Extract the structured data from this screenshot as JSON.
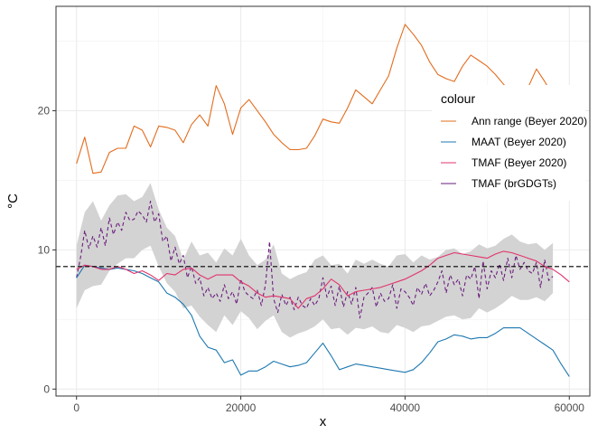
{
  "chart_data": {
    "type": "line",
    "title": "",
    "xlabel": "x",
    "ylabel": "°C",
    "xlim": [
      -2500,
      62500
    ],
    "ylim": [
      -0.5,
      27.5
    ],
    "x_ticks": [
      0,
      20000,
      40000,
      60000
    ],
    "x_tick_labels": [
      "0",
      "20000",
      "40000",
      "60000"
    ],
    "y_ticks": [
      0,
      10,
      20
    ],
    "y_tick_labels": [
      "0",
      "10",
      "20"
    ],
    "grid": true,
    "legend": {
      "title": "colour",
      "placement": "right",
      "entries": [
        {
          "label": "Ann range (Beyer 2020)",
          "color": "#E26C1E"
        },
        {
          "label": "MAAT (Beyer 2020)",
          "color": "#1D78B0"
        },
        {
          "label": "TMAF (Beyer 2020)",
          "color": "#E2336B"
        },
        {
          "label": "TMAF (brGDGTs)",
          "color": "#6B1E7E"
        }
      ]
    },
    "hline": {
      "y": 8.8,
      "style": "dashed",
      "color": "#000000"
    },
    "ribbon": {
      "color": "#D3D3D3",
      "x": [
        0,
        1000,
        2000,
        3000,
        4000,
        5000,
        6000,
        7000,
        8000,
        9000,
        10000,
        11000,
        12000,
        13000,
        14000,
        15000,
        16000,
        17000,
        18000,
        19000,
        20000,
        21000,
        22000,
        23000,
        24000,
        25000,
        26000,
        27000,
        28000,
        29000,
        30000,
        31000,
        32000,
        33000,
        34000,
        35000,
        36000,
        37000,
        38000,
        39000,
        40000,
        41000,
        42000,
        43000,
        44000,
        45000,
        46000,
        47000,
        48000,
        49000,
        50000,
        51000,
        52000,
        53000,
        54000,
        55000,
        56000,
        57000,
        58000
      ],
      "upper": [
        10.3,
        12.7,
        13.5,
        12.1,
        13.2,
        13.9,
        14.0,
        13.5,
        13.8,
        14.8,
        12.9,
        11.6,
        11.0,
        9.3,
        10.6,
        9.6,
        9.8,
        9.1,
        10.1,
        9.6,
        10.8,
        9.6,
        8.9,
        9.3,
        10.4,
        8.3,
        7.9,
        8.2,
        8.4,
        9.3,
        9.6,
        8.9,
        9.0,
        8.3,
        9.3,
        9.0,
        9.3,
        9.0,
        8.8,
        9.6,
        9.7,
        9.1,
        9.6,
        9.3,
        9.5,
        10.0,
        10.1,
        9.7,
        9.9,
        10.4,
        10.1,
        10.3,
        10.8,
        11.1,
        10.6,
        10.4,
        10.5,
        10.0,
        10.5
      ],
      "lower": [
        5.8,
        7.1,
        7.4,
        7.5,
        8.5,
        9.0,
        9.4,
        9.4,
        10.0,
        10.3,
        8.8,
        7.6,
        7.0,
        5.8,
        6.0,
        5.2,
        4.6,
        4.1,
        5.3,
        4.6,
        5.6,
        5.1,
        4.3,
        4.9,
        5.3,
        4.1,
        3.7,
        4.0,
        4.2,
        4.5,
        5.0,
        4.3,
        4.4,
        3.9,
        4.4,
        4.3,
        4.5,
        4.1,
        4.0,
        4.6,
        4.4,
        4.1,
        4.5,
        4.6,
        4.9,
        5.2,
        5.3,
        5.0,
        5.1,
        5.8,
        5.5,
        5.8,
        6.2,
        6.7,
        6.4,
        6.4,
        6.6,
        6.3,
        6.9
      ]
    },
    "series": [
      {
        "name": "Ann range (Beyer 2020)",
        "color": "#E26C1E",
        "style": "solid",
        "x": [
          0,
          1000,
          2000,
          3000,
          4000,
          5000,
          6000,
          7000,
          8000,
          9000,
          10000,
          11000,
          12000,
          13000,
          14000,
          15000,
          16000,
          17000,
          18000,
          19000,
          20000,
          21000,
          22000,
          23000,
          24000,
          25000,
          26000,
          27000,
          28000,
          29000,
          30000,
          31000,
          32000,
          33000,
          34000,
          35000,
          36000,
          37000,
          38000,
          39000,
          40000,
          41000,
          42000,
          43000,
          44000,
          45000,
          46000,
          47000,
          48000,
          49000,
          50000,
          51000,
          52000,
          53000,
          54000,
          55000,
          56000,
          57000,
          58000,
          59000,
          60000
        ],
        "values": [
          16.2,
          18.1,
          15.5,
          15.6,
          17.0,
          17.3,
          17.3,
          18.9,
          18.6,
          17.4,
          18.9,
          18.8,
          18.6,
          17.7,
          19.0,
          19.7,
          18.9,
          21.8,
          20.5,
          18.3,
          20.2,
          20.8,
          20.0,
          19.2,
          18.3,
          17.7,
          17.2,
          17.2,
          17.3,
          18.2,
          19.4,
          19.2,
          19.1,
          20.2,
          21.5,
          21.0,
          20.5,
          21.5,
          22.5,
          24.5,
          26.2,
          25.5,
          24.7,
          23.5,
          22.6,
          22.3,
          22.1,
          23.2,
          24.0,
          23.6,
          23.2,
          22.6,
          21.9,
          21.3,
          21.0,
          21.7,
          23.0,
          22.1,
          21.1,
          20.7,
          20.4
        ]
      },
      {
        "name": "MAAT (Beyer 2020)",
        "color": "#1D78B0",
        "style": "solid",
        "x": [
          0,
          1000,
          2000,
          3000,
          4000,
          5000,
          6000,
          7000,
          8000,
          9000,
          10000,
          11000,
          12000,
          13000,
          14000,
          15000,
          16000,
          17000,
          18000,
          19000,
          20000,
          21000,
          22000,
          23000,
          24000,
          25000,
          26000,
          27000,
          28000,
          29000,
          30000,
          31000,
          32000,
          33000,
          34000,
          35000,
          36000,
          37000,
          38000,
          39000,
          40000,
          41000,
          42000,
          43000,
          44000,
          45000,
          46000,
          47000,
          48000,
          49000,
          50000,
          51000,
          52000,
          53000,
          54000,
          55000,
          56000,
          57000,
          58000,
          59000,
          60000
        ],
        "values": [
          8.0,
          8.9,
          8.8,
          8.7,
          8.6,
          8.7,
          8.6,
          8.5,
          8.3,
          8.0,
          7.7,
          6.9,
          6.6,
          6.1,
          5.3,
          3.8,
          3.0,
          2.8,
          1.9,
          2.1,
          1.0,
          1.3,
          1.3,
          1.6,
          2.0,
          1.8,
          1.6,
          1.7,
          1.9,
          2.6,
          3.3,
          2.4,
          1.4,
          1.6,
          1.8,
          1.7,
          1.6,
          1.5,
          1.4,
          1.3,
          1.2,
          1.4,
          1.9,
          2.6,
          3.4,
          3.6,
          3.9,
          3.8,
          3.6,
          3.7,
          3.7,
          4.0,
          4.4,
          4.4,
          4.4,
          4.0,
          3.6,
          3.2,
          2.8,
          1.8,
          0.9
        ]
      },
      {
        "name": "TMAF (Beyer 2020)",
        "color": "#E2336B",
        "style": "solid",
        "x": [
          0,
          1000,
          2000,
          3000,
          4000,
          5000,
          6000,
          7000,
          8000,
          9000,
          10000,
          11000,
          12000,
          13000,
          14000,
          15000,
          16000,
          17000,
          18000,
          19000,
          20000,
          21000,
          22000,
          23000,
          24000,
          25000,
          26000,
          27000,
          28000,
          29000,
          30000,
          31000,
          32000,
          33000,
          34000,
          35000,
          36000,
          37000,
          38000,
          39000,
          40000,
          41000,
          42000,
          43000,
          44000,
          45000,
          46000,
          47000,
          48000,
          49000,
          50000,
          51000,
          52000,
          53000,
          54000,
          55000,
          56000,
          57000,
          58000,
          59000,
          60000
        ],
        "values": [
          8.6,
          8.9,
          8.8,
          8.6,
          8.6,
          8.8,
          8.6,
          8.3,
          8.5,
          8.2,
          7.8,
          8.3,
          8.2,
          8.6,
          8.7,
          8.2,
          7.9,
          8.2,
          8.2,
          8.2,
          7.7,
          7.4,
          6.9,
          6.6,
          6.7,
          6.6,
          6.5,
          5.8,
          6.5,
          6.7,
          7.2,
          7.9,
          7.5,
          6.7,
          7.0,
          7.1,
          7.2,
          7.3,
          7.5,
          7.7,
          7.9,
          8.2,
          8.5,
          8.9,
          9.4,
          9.6,
          9.8,
          9.7,
          9.6,
          9.5,
          9.4,
          9.7,
          9.9,
          9.8,
          9.6,
          9.4,
          9.2,
          8.8,
          8.6,
          8.2,
          7.7
        ]
      },
      {
        "name": "TMAF (brGDGTs)",
        "color": "#6B1E7E",
        "style": "dashed",
        "x": [
          0,
          500,
          1000,
          1500,
          2000,
          2500,
          3000,
          3500,
          4000,
          4500,
          5000,
          5500,
          6000,
          6500,
          7000,
          7500,
          8000,
          8500,
          9000,
          9500,
          10000,
          10500,
          11000,
          11500,
          12000,
          12500,
          13000,
          13500,
          14000,
          14500,
          15000,
          15500,
          16000,
          16500,
          17000,
          17500,
          18000,
          18500,
          19000,
          19500,
          20000,
          20500,
          21000,
          21500,
          22000,
          22500,
          23000,
          23500,
          24000,
          24500,
          25000,
          25500,
          26000,
          26500,
          27000,
          27500,
          28000,
          28500,
          29000,
          29500,
          30000,
          30500,
          31000,
          31500,
          32000,
          32500,
          33000,
          33500,
          34000,
          34500,
          35000,
          35500,
          36000,
          36500,
          37000,
          37500,
          38000,
          38500,
          39000,
          39500,
          40000,
          40500,
          41000,
          41500,
          42000,
          42500,
          43000,
          43500,
          44000,
          44500,
          45000,
          45500,
          46000,
          46500,
          47000,
          47500,
          48000,
          48500,
          49000,
          49500,
          50000,
          50500,
          51000,
          51500,
          52000,
          52500,
          53000,
          53500,
          54000,
          54500,
          55000,
          55500,
          56000,
          56500,
          57000,
          57500,
          58000
        ],
        "values": [
          8.0,
          9.5,
          11.4,
          10.1,
          11.0,
          10.2,
          11.6,
          10.3,
          12.3,
          11.1,
          12.0,
          11.4,
          12.7,
          12.1,
          12.2,
          12.8,
          12.5,
          12.0,
          13.5,
          12.0,
          12.6,
          10.6,
          11.0,
          9.2,
          10.2,
          9.0,
          9.6,
          8.0,
          8.8,
          7.6,
          8.0,
          6.7,
          7.3,
          6.5,
          6.9,
          6.3,
          7.5,
          6.5,
          7.0,
          6.1,
          7.9,
          7.0,
          6.7,
          6.5,
          7.1,
          6.0,
          7.5,
          10.6,
          6.5,
          5.5,
          6.8,
          6.0,
          6.6,
          5.7,
          6.6,
          6.0,
          5.8,
          6.5,
          6.0,
          6.5,
          8.0,
          6.6,
          7.4,
          6.0,
          7.4,
          5.9,
          7.0,
          6.1,
          7.3,
          5.1,
          6.6,
          6.9,
          7.3,
          5.9,
          6.9,
          6.3,
          6.5,
          7.5,
          5.8,
          7.2,
          7.0,
          6.6,
          6.0,
          7.3,
          6.8,
          7.6,
          6.7,
          7.1,
          7.7,
          8.5,
          6.9,
          8.2,
          7.5,
          7.9,
          6.7,
          8.2,
          7.9,
          8.8,
          6.5,
          9.2,
          7.2,
          8.5,
          8.0,
          9.0,
          7.8,
          9.4,
          8.0,
          9.6,
          8.6,
          9.1,
          8.5,
          8.3,
          9.1,
          7.3,
          9.3,
          7.8,
          8.1
        ]
      }
    ]
  }
}
